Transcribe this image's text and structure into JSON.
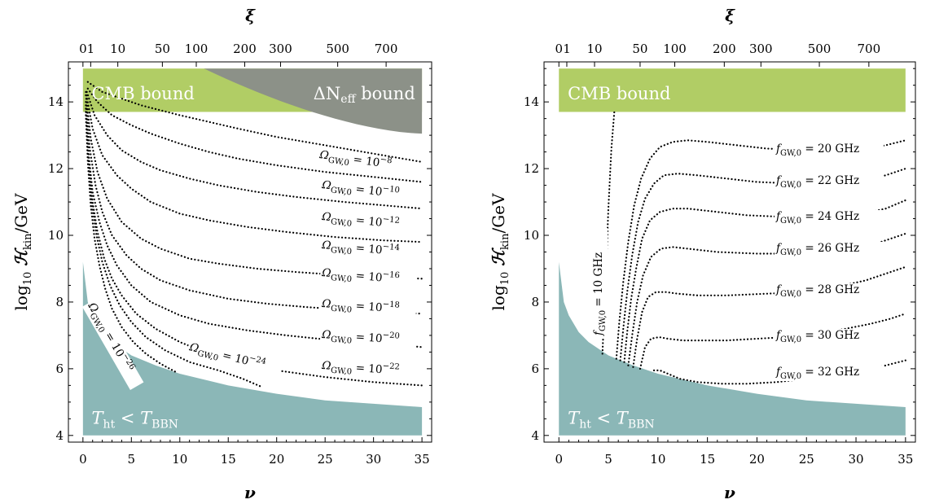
{
  "chart_data": [
    {
      "panel": "left",
      "type": "line",
      "xlabel": "ν",
      "x2label": "ξ",
      "ylabel": "log10 Hkin/GeV",
      "xlim": [
        -1.5,
        36
      ],
      "ylim": [
        3.8,
        15.2
      ],
      "xticks": [
        "0",
        "5",
        "10",
        "15",
        "20",
        "25",
        "30",
        "35"
      ],
      "yticks": [
        "4",
        "6",
        "8",
        "10",
        "12",
        "14"
      ],
      "xi_ticks": [
        {
          "label": "0",
          "nu": 0
        },
        {
          "label": "1",
          "nu": 0.8
        },
        {
          "label": "10",
          "nu": 3.6
        },
        {
          "label": "50",
          "nu": 8.2
        },
        {
          "label": "100",
          "nu": 11.7
        },
        {
          "label": "200",
          "nu": 16.7
        },
        {
          "label": "300",
          "nu": 20.4
        },
        {
          "label": "500",
          "nu": 26.3
        },
        {
          "label": "700",
          "nu": 31.3
        }
      ],
      "regions": [
        {
          "name": "CMB bound",
          "color": "#b1cd65",
          "y_low": 13.7,
          "y_high": 15
        },
        {
          "name": "ΔNeff bound",
          "color": "#8c9188",
          "boundary": {
            "x": [
              12.5,
              35
            ],
            "y": [
              15,
              13.05
            ]
          }
        },
        {
          "name": "T_ht < T_BBN",
          "color": "#8bb7b7",
          "boundary": {
            "x": [
              0,
              0.5,
              1,
              2,
              3,
              5,
              7.5,
              10,
              15,
              20,
              25,
              30,
              35
            ],
            "y": [
              9.2,
              8.0,
              7.6,
              7.1,
              6.8,
              6.4,
              6.1,
              5.85,
              5.5,
              5.25,
              5.05,
              4.95,
              4.85
            ]
          }
        }
      ],
      "region_labels": {
        "cmb": "CMB bound",
        "neff_pre": "ΔN",
        "neff_sub": "eff",
        "neff_post": " bound",
        "bbn_T1": "T",
        "bbn_sub1": "ht",
        "bbn_lt": " < ",
        "bbn_T2": "T",
        "bbn_sub2": "BBN"
      },
      "series": [
        {
          "name": "ΩGW,0 = 10^-8",
          "base": "Ω",
          "sub": "GW,0",
          "eq": " = 10",
          "sup": "−8",
          "x": [
            0.5,
            2,
            4,
            6,
            8,
            10,
            13,
            16,
            20,
            25,
            30,
            35
          ],
          "y": [
            14.6,
            14.3,
            14.1,
            13.9,
            13.75,
            13.6,
            13.4,
            13.2,
            12.95,
            12.7,
            12.45,
            12.2
          ]
        },
        {
          "name": "ΩGW,0 = 10^-10",
          "base": "Ω",
          "sub": "GW,0",
          "eq": " = 10",
          "sup": "−10",
          "x": [
            0.5,
            1.5,
            3,
            5,
            7,
            10,
            13,
            16,
            20,
            25,
            30,
            35
          ],
          "y": [
            14.4,
            14.0,
            13.6,
            13.3,
            13.05,
            12.75,
            12.5,
            12.3,
            12.1,
            11.9,
            11.75,
            11.6
          ]
        },
        {
          "name": "ΩGW,0 = 10^-12",
          "base": "Ω",
          "sub": "GW,0",
          "eq": " = 10",
          "sup": "−12",
          "x": [
            0.4,
            1.2,
            2.5,
            4,
            6,
            8,
            11,
            14,
            18,
            22,
            27,
            31,
            35
          ],
          "y": [
            14.3,
            13.6,
            13.0,
            12.55,
            12.2,
            11.95,
            11.7,
            11.5,
            11.3,
            11.15,
            11.0,
            10.9,
            10.8
          ]
        },
        {
          "name": "ΩGW,0 = 10^-14",
          "base": "Ω",
          "sub": "GW,0",
          "eq": " = 10",
          "sup": "−14",
          "x": [
            0.3,
            1,
            2,
            3.5,
            5,
            7,
            10,
            13,
            17,
            21,
            26,
            31,
            35
          ],
          "y": [
            14.3,
            13.2,
            12.4,
            11.8,
            11.4,
            11.0,
            10.65,
            10.45,
            10.25,
            10.1,
            9.95,
            9.85,
            9.8
          ]
        },
        {
          "name": "ΩGW,0 = 10^-16",
          "base": "Ω",
          "sub": "GW,0",
          "eq": " = 10",
          "sup": "−16",
          "x": [
            0.3,
            0.8,
            1.5,
            2.5,
            4,
            6,
            8,
            11,
            14,
            18,
            22,
            27,
            31,
            35
          ],
          "y": [
            14.2,
            12.9,
            11.9,
            11.1,
            10.4,
            9.9,
            9.6,
            9.3,
            9.15,
            9.0,
            8.9,
            8.8,
            8.75,
            8.7
          ]
        },
        {
          "name": "ΩGW,0 = 10^-18",
          "base": "Ω",
          "sub": "GW,0",
          "eq": " = 10",
          "sup": "−18",
          "x": [
            0.3,
            0.7,
            1.3,
            2,
            3,
            4.5,
            6,
            8,
            11,
            15,
            19,
            23,
            28,
            35
          ],
          "y": [
            14.0,
            12.6,
            11.5,
            10.7,
            10.0,
            9.4,
            9.0,
            8.65,
            8.35,
            8.1,
            7.95,
            7.85,
            7.75,
            7.65
          ]
        },
        {
          "name": "ΩGW,0 = 10^-20",
          "base": "Ω",
          "sub": "GW,0",
          "eq": " = 10",
          "sup": "−20",
          "x": [
            0.3,
            0.6,
            1,
            1.7,
            2.5,
            3.5,
            5,
            7,
            10,
            13,
            17,
            21,
            26,
            31,
            35
          ],
          "y": [
            13.9,
            12.4,
            11.3,
            10.4,
            9.7,
            9.1,
            8.5,
            8.0,
            7.6,
            7.35,
            7.15,
            7.0,
            6.85,
            6.75,
            6.65
          ]
        },
        {
          "name": "ΩGW,0 = 10^-22",
          "base": "Ω",
          "sub": "GW,0",
          "eq": " = 10",
          "sup": "−22",
          "x": [
            0.3,
            0.6,
            1,
            1.5,
            2.2,
            3,
            4,
            5.5,
            7.5,
            10,
            13,
            16,
            20,
            25,
            30,
            35
          ],
          "y": [
            13.8,
            12.2,
            11.0,
            10.1,
            9.3,
            8.7,
            8.2,
            7.65,
            7.2,
            6.8,
            6.45,
            6.2,
            5.95,
            5.75,
            5.6,
            5.5
          ]
        },
        {
          "name": "ΩGW,0 = 10^-24",
          "base": "Ω",
          "sub": "GW,0",
          "eq": " = 10",
          "sup": "−24",
          "x": [
            0.3,
            0.5,
            0.9,
            1.4,
            2,
            2.8,
            3.8,
            5,
            6.5,
            8.5,
            11,
            14,
            16.5,
            18.5
          ],
          "y": [
            13.7,
            12.4,
            11.0,
            10.0,
            9.2,
            8.5,
            7.9,
            7.4,
            6.95,
            6.55,
            6.2,
            5.95,
            5.7,
            5.45
          ]
        },
        {
          "name": "ΩGW,0 = 10^-26",
          "base": "Ω",
          "sub": "GW,0",
          "eq": " = 10",
          "sup": "−26",
          "x": [
            0.3,
            0.5,
            0.8,
            1.2,
            1.7,
            2.3,
            3,
            4,
            5.2,
            6.5,
            8,
            9.6
          ],
          "y": [
            13.6,
            12.2,
            10.9,
            9.9,
            9.1,
            8.4,
            7.8,
            7.25,
            6.8,
            6.45,
            6.15,
            5.9
          ]
        }
      ]
    },
    {
      "panel": "right",
      "type": "line",
      "xlabel": "ν",
      "x2label": "ξ",
      "ylabel": "log10 Hkin/GeV",
      "xlim": [
        -1.5,
        36
      ],
      "ylim": [
        3.8,
        15.2
      ],
      "xticks": [
        "0",
        "5",
        "10",
        "15",
        "20",
        "25",
        "30",
        "35"
      ],
      "yticks": [
        "4",
        "6",
        "8",
        "10",
        "12",
        "14"
      ],
      "xi_ticks": [
        {
          "label": "0",
          "nu": 0
        },
        {
          "label": "1",
          "nu": 0.8
        },
        {
          "label": "10",
          "nu": 3.6
        },
        {
          "label": "50",
          "nu": 8.2
        },
        {
          "label": "100",
          "nu": 11.7
        },
        {
          "label": "200",
          "nu": 16.7
        },
        {
          "label": "300",
          "nu": 20.4
        },
        {
          "label": "500",
          "nu": 26.3
        },
        {
          "label": "700",
          "nu": 31.3
        }
      ],
      "regions": [
        {
          "name": "CMB bound",
          "color": "#b1cd65",
          "y_low": 13.7,
          "y_high": 15
        },
        {
          "name": "T_ht < T_BBN",
          "color": "#8bb7b7",
          "boundary": {
            "x": [
              0,
              0.5,
              1,
              2,
              3,
              5,
              7.5,
              10,
              15,
              20,
              25,
              30,
              35
            ],
            "y": [
              9.2,
              8.0,
              7.6,
              7.1,
              6.8,
              6.4,
              6.1,
              5.85,
              5.5,
              5.25,
              5.05,
              4.95,
              4.85
            ]
          }
        }
      ],
      "region_labels": {
        "cmb": "CMB bound",
        "bbn_T1": "T",
        "bbn_sub1": "ht",
        "bbn_lt": " < ",
        "bbn_T2": "T",
        "bbn_sub2": "BBN"
      },
      "series": [
        {
          "name": "fGW,0 = 10 GHz",
          "base": "f",
          "sub": "GW,0",
          "eq": " = 10 GHz",
          "x": [
            4.4,
            4.7,
            5.0,
            5.3,
            5.6
          ],
          "y": [
            6.45,
            8.5,
            10.8,
            12.6,
            13.7
          ]
        },
        {
          "name": "fGW,0 = 20 GHz",
          "base": "f",
          "sub": "GW,0",
          "eq": " = 20 GHz",
          "x": [
            5.8,
            6.1,
            6.5,
            7.0,
            7.6,
            8.3,
            9.2,
            10.2,
            11.5,
            13,
            15,
            18,
            21,
            25,
            28,
            31,
            33,
            35
          ],
          "y": [
            6.3,
            7.4,
            8.6,
            9.8,
            10.9,
            11.7,
            12.3,
            12.65,
            12.8,
            12.85,
            12.8,
            12.7,
            12.6,
            12.55,
            12.55,
            12.6,
            12.7,
            12.85
          ]
        },
        {
          "name": "fGW,0 = 22 GHz",
          "base": "f",
          "sub": "GW,0",
          "eq": " = 22 GHz",
          "x": [
            6.2,
            6.5,
            6.9,
            7.4,
            8.0,
            8.7,
            9.6,
            10.6,
            12,
            14,
            17,
            20,
            24,
            28,
            31,
            33,
            35
          ],
          "y": [
            6.25,
            7.2,
            8.3,
            9.4,
            10.4,
            11.1,
            11.55,
            11.8,
            11.85,
            11.8,
            11.7,
            11.6,
            11.55,
            11.55,
            11.65,
            11.8,
            12.0
          ]
        },
        {
          "name": "fGW,0 = 24 GHz",
          "base": "f",
          "sub": "GW,0",
          "eq": " = 24 GHz",
          "x": [
            6.6,
            6.9,
            7.3,
            7.8,
            8.4,
            9.2,
            10.2,
            11.5,
            13,
            16,
            19,
            23,
            27,
            30,
            33,
            35
          ],
          "y": [
            6.2,
            7.1,
            8.1,
            9.0,
            9.9,
            10.45,
            10.7,
            10.8,
            10.8,
            10.7,
            10.6,
            10.55,
            10.55,
            10.6,
            10.8,
            11.05
          ]
        },
        {
          "name": "fGW,0 = 26 GHz",
          "base": "f",
          "sub": "GW,0",
          "eq": " = 26 GHz",
          "x": [
            7.0,
            7.4,
            7.9,
            8.5,
            9.3,
            10.3,
            11.5,
            13,
            16,
            20,
            24,
            28,
            31,
            33,
            35
          ],
          "y": [
            6.1,
            7.0,
            8.0,
            8.8,
            9.35,
            9.6,
            9.65,
            9.6,
            9.5,
            9.45,
            9.45,
            9.5,
            9.65,
            9.85,
            10.05
          ]
        },
        {
          "name": "fGW,0 = 28 GHz",
          "base": "f",
          "sub": "GW,0",
          "eq": " = 28 GHz",
          "x": [
            7.5,
            7.9,
            8.4,
            9.0,
            9.8,
            10.8,
            12,
            14,
            17,
            21,
            25,
            28,
            31,
            33,
            35
          ],
          "y": [
            6.05,
            6.9,
            7.7,
            8.15,
            8.3,
            8.3,
            8.25,
            8.2,
            8.2,
            8.25,
            8.3,
            8.45,
            8.65,
            8.85,
            9.05
          ]
        },
        {
          "name": "fGW,0 = 30 GHz",
          "base": "f",
          "sub": "GW,0",
          "eq": " = 30 GHz",
          "x": [
            8.2,
            8.7,
            9.3,
            10.1,
            11,
            12.5,
            14.5,
            17,
            20,
            23,
            26,
            29,
            31.5,
            33.5,
            35
          ],
          "y": [
            6.0,
            6.65,
            6.9,
            6.95,
            6.9,
            6.85,
            6.85,
            6.85,
            6.9,
            6.95,
            7.05,
            7.2,
            7.35,
            7.5,
            7.65
          ]
        },
        {
          "name": "fGW,0 = 32 GHz",
          "base": "f",
          "sub": "GW,0",
          "eq": " = 32 GHz",
          "x": [
            9.6,
            10.2,
            11,
            12.2,
            14,
            16.5,
            19,
            22,
            25,
            28,
            31,
            33,
            35
          ],
          "y": [
            5.95,
            5.95,
            5.85,
            5.7,
            5.6,
            5.55,
            5.55,
            5.6,
            5.7,
            5.8,
            5.95,
            6.1,
            6.25
          ]
        }
      ]
    }
  ]
}
